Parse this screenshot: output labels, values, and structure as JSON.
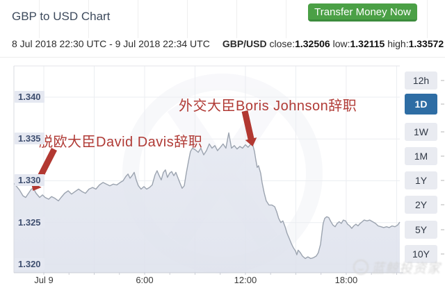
{
  "header": {
    "title": "GBP to USD Chart",
    "cta_label": "Transfer Money Now"
  },
  "info_bar": {
    "date_range": "8 Jul 2018 22:30 UTC - 9 Jul 2018 22:34 UTC",
    "pair": "GBP/USD",
    "close_label": "close:",
    "close_value": "1.32506",
    "low_label": "low:",
    "low_value": "1.32115",
    "high_label": "high:",
    "high_value": "1.33572"
  },
  "timeframe": {
    "options": [
      "12h",
      "1D",
      "1W",
      "1M",
      "1Y",
      "2Y",
      "5Y",
      "10Y"
    ],
    "active": "1D"
  },
  "annotations": [
    {
      "id": "davis",
      "text": "脱欧大臣David Davis辞职"
    },
    {
      "id": "boris",
      "text": "外交大臣Boris Johnson辞职"
    }
  ],
  "watermark": {
    "text": "蓝鲸投资家"
  },
  "colors": {
    "cta_green": "#4ba046",
    "annotation_red": "#b03a35",
    "active_blue": "#2e6da4",
    "line": "#9ba3af",
    "area": "#e5e8f0",
    "grid": "#ebedf1",
    "tick_label_bg": "#e5e8f1",
    "tick_label_fg": "#3e4e6f"
  },
  "chart_data": {
    "type": "area",
    "title": "GBP to USD Chart",
    "x_unit": "hours from 9 Jul 2018 00:00 UTC",
    "xlim": [
      -1.78,
      21.19
    ],
    "ylim": [
      1.319,
      1.34373
    ],
    "grid_t": [
      0,
      3,
      6,
      9,
      12,
      15,
      18,
      21
    ],
    "minor_tick_step": 1.5,
    "xticks": [
      {
        "t": 0,
        "label": "Jul 9"
      },
      {
        "t": 6,
        "label": "6:00"
      },
      {
        "t": 12,
        "label": "12:00"
      },
      {
        "t": 18,
        "label": "18:00"
      }
    ],
    "yticks": [
      {
        "v": 1.32,
        "label": "1.320"
      },
      {
        "v": 1.325,
        "label": "1.325"
      },
      {
        "v": 1.33,
        "label": "1.330"
      },
      {
        "v": 1.335,
        "label": "1.335"
      },
      {
        "v": 1.34,
        "label": "1.340"
      }
    ],
    "legend": "none",
    "grid": "on",
    "series": [
      {
        "name": "GBP/USD",
        "points": [
          [
            -1.78,
            1.3297
          ],
          [
            -1.61,
            1.3293
          ],
          [
            -1.45,
            1.3289
          ],
          [
            -1.24,
            1.3282
          ],
          [
            -1.08,
            1.328
          ],
          [
            -0.91,
            1.3285
          ],
          [
            -0.74,
            1.329
          ],
          [
            -0.62,
            1.3291
          ],
          [
            -0.46,
            1.3285
          ],
          [
            -0.25,
            1.328
          ],
          [
            -0.08,
            1.3283
          ],
          [
            0.08,
            1.328
          ],
          [
            0.29,
            1.3278
          ],
          [
            0.46,
            1.3281
          ],
          [
            0.66,
            1.3279
          ],
          [
            0.87,
            1.3276
          ],
          [
            1.03,
            1.328
          ],
          [
            1.24,
            1.3285
          ],
          [
            1.45,
            1.3288
          ],
          [
            1.65,
            1.3284
          ],
          [
            1.86,
            1.3287
          ],
          [
            2.07,
            1.329
          ],
          [
            2.28,
            1.3287
          ],
          [
            2.48,
            1.3285
          ],
          [
            2.69,
            1.329
          ],
          [
            2.9,
            1.3292
          ],
          [
            3.1,
            1.329
          ],
          [
            3.31,
            1.3295
          ],
          [
            3.52,
            1.3298
          ],
          [
            3.72,
            1.3296
          ],
          [
            3.93,
            1.3294
          ],
          [
            4.14,
            1.3296
          ],
          [
            4.34,
            1.3295
          ],
          [
            4.55,
            1.3298
          ],
          [
            4.72,
            1.33
          ],
          [
            4.88,
            1.3305
          ],
          [
            5.01,
            1.3308
          ],
          [
            5.13,
            1.3303
          ],
          [
            5.25,
            1.3306
          ],
          [
            5.38,
            1.331
          ],
          [
            5.5,
            1.3301
          ],
          [
            5.63,
            1.3294
          ],
          [
            5.79,
            1.329
          ],
          [
            5.96,
            1.3293
          ],
          [
            6.12,
            1.329
          ],
          [
            6.29,
            1.3292
          ],
          [
            6.45,
            1.3295
          ],
          [
            6.62,
            1.3307
          ],
          [
            6.74,
            1.3312
          ],
          [
            6.87,
            1.3306
          ],
          [
            6.99,
            1.3301
          ],
          [
            7.12,
            1.331
          ],
          [
            7.24,
            1.3313
          ],
          [
            7.36,
            1.3304
          ],
          [
            7.49,
            1.3309
          ],
          [
            7.61,
            1.3311
          ],
          [
            7.74,
            1.3306
          ],
          [
            7.86,
            1.331
          ],
          [
            7.99,
            1.3303
          ],
          [
            8.11,
            1.3297
          ],
          [
            8.23,
            1.3291
          ],
          [
            8.36,
            1.3294
          ],
          [
            8.48,
            1.3309
          ],
          [
            8.61,
            1.3323
          ],
          [
            8.73,
            1.3335
          ],
          [
            8.85,
            1.3339
          ],
          [
            9.02,
            1.3337
          ],
          [
            9.19,
            1.3334
          ],
          [
            9.35,
            1.3339
          ],
          [
            9.52,
            1.3331
          ],
          [
            9.68,
            1.3336
          ],
          [
            9.85,
            1.3344
          ],
          [
            10.01,
            1.3339
          ],
          [
            10.18,
            1.3342
          ],
          [
            10.34,
            1.3336
          ],
          [
            10.51,
            1.334
          ],
          [
            10.67,
            1.3344
          ],
          [
            10.84,
            1.3339
          ],
          [
            11.01,
            1.33572
          ],
          [
            11.17,
            1.3339
          ],
          [
            11.34,
            1.3342
          ],
          [
            11.5,
            1.3338
          ],
          [
            11.67,
            1.3341
          ],
          [
            11.83,
            1.3339
          ],
          [
            12.0,
            1.3343
          ],
          [
            12.16,
            1.334
          ],
          [
            12.33,
            1.3344
          ],
          [
            12.45,
            1.3342
          ],
          [
            12.54,
            1.3335
          ],
          [
            12.62,
            1.3325
          ],
          [
            12.7,
            1.3316
          ],
          [
            12.78,
            1.3318
          ],
          [
            12.91,
            1.3309
          ],
          [
            12.99,
            1.3298
          ],
          [
            13.11,
            1.3286
          ],
          [
            13.24,
            1.3276
          ],
          [
            13.4,
            1.3271
          ],
          [
            13.57,
            1.3271
          ],
          [
            13.74,
            1.3269
          ],
          [
            13.86,
            1.3263
          ],
          [
            13.98,
            1.3255
          ],
          [
            14.11,
            1.325
          ],
          [
            14.23,
            1.3252
          ],
          [
            14.36,
            1.3245
          ],
          [
            14.48,
            1.3237
          ],
          [
            14.61,
            1.3231
          ],
          [
            14.73,
            1.3225
          ],
          [
            14.85,
            1.322
          ],
          [
            14.98,
            1.3216
          ],
          [
            15.06,
            1.32115
          ],
          [
            15.14,
            1.3217
          ],
          [
            15.27,
            1.3214
          ],
          [
            15.39,
            1.321
          ],
          [
            15.56,
            1.3207
          ],
          [
            15.72,
            1.3209
          ],
          [
            15.89,
            1.3207
          ],
          [
            16.05,
            1.3208
          ],
          [
            16.22,
            1.321
          ],
          [
            16.34,
            1.3214
          ],
          [
            16.47,
            1.3224
          ],
          [
            16.55,
            1.3237
          ],
          [
            16.63,
            1.3249
          ],
          [
            16.72,
            1.3255
          ],
          [
            16.84,
            1.3257
          ],
          [
            16.96,
            1.3256
          ],
          [
            17.09,
            1.3251
          ],
          [
            17.21,
            1.3247
          ],
          [
            17.34,
            1.3245
          ],
          [
            17.46,
            1.3249
          ],
          [
            17.58,
            1.3251
          ],
          [
            17.71,
            1.3249
          ],
          [
            17.83,
            1.3253
          ],
          [
            17.96,
            1.3252
          ],
          [
            18.08,
            1.3248
          ],
          [
            18.21,
            1.3246
          ],
          [
            18.33,
            1.3243
          ],
          [
            18.45,
            1.3246
          ],
          [
            18.58,
            1.3248
          ],
          [
            18.7,
            1.3246
          ],
          [
            18.83,
            1.3249
          ],
          [
            18.95,
            1.3251
          ],
          [
            19.07,
            1.3253
          ],
          [
            19.24,
            1.3252
          ],
          [
            19.4,
            1.3253
          ],
          [
            19.57,
            1.3251
          ],
          [
            19.74,
            1.3249
          ],
          [
            19.9,
            1.3246
          ],
          [
            20.07,
            1.3245
          ],
          [
            20.23,
            1.3244
          ],
          [
            20.4,
            1.3245
          ],
          [
            20.56,
            1.3244
          ],
          [
            20.73,
            1.3246
          ],
          [
            20.9,
            1.3245
          ],
          [
            21.06,
            1.3247
          ],
          [
            21.19,
            1.32506
          ]
        ]
      }
    ]
  }
}
